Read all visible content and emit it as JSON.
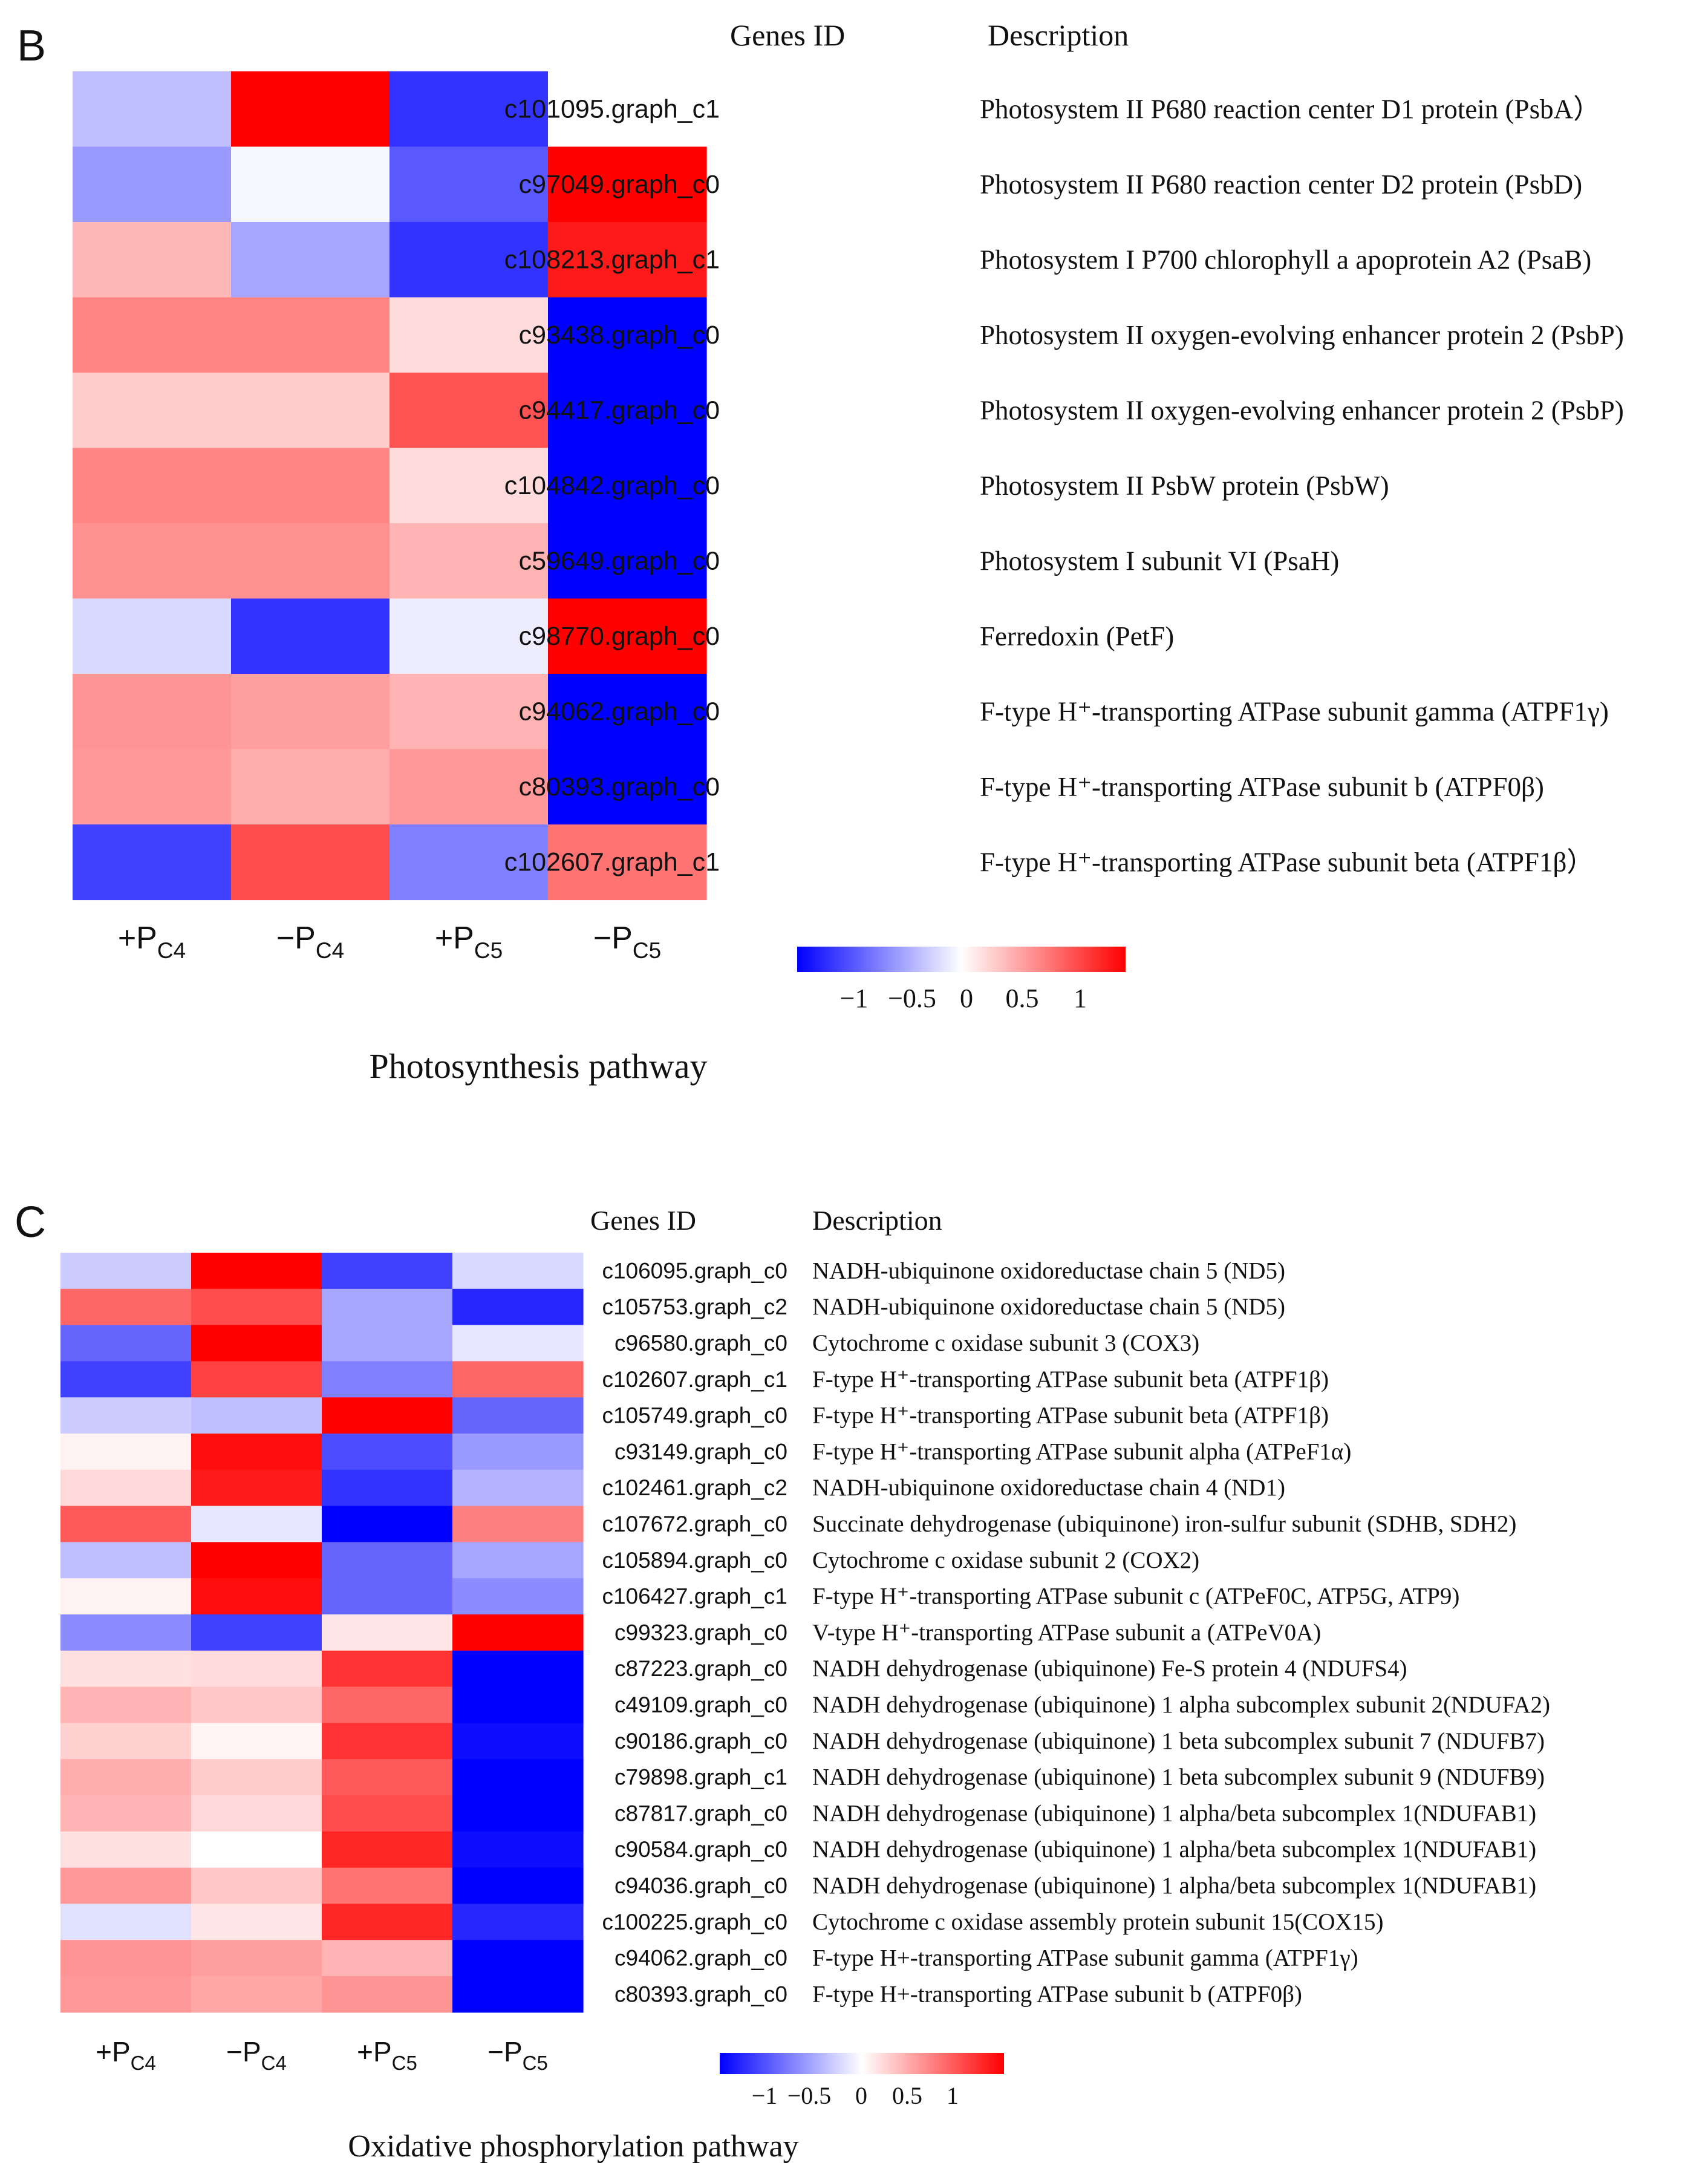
{
  "chart_data": [
    {
      "type": "heatmap",
      "panel_label": "B",
      "title": "Photosynthesis pathway",
      "gene_id_header": "Genes ID",
      "description_header": "Description",
      "columns": [
        {
          "main": "+P",
          "sub": "C4"
        },
        {
          "main": "−P",
          "sub": "C4"
        },
        {
          "main": "+P",
          "sub": "C5"
        },
        {
          "main": "−P",
          "sub": "C5"
        }
      ],
      "rows": [
        {
          "gene": "c101095.graph_c1",
          "description": "Photosystem II P680 reaction center D1 protein (PsbA）",
          "values": [
            -0.25,
            1.0,
            -0.8,
            0.0
          ]
        },
        {
          "gene": "c97049.graph_c0",
          "description": "Photosystem II P680 reaction center D2 protein (PsbD)",
          "values": [
            -0.4,
            -0.03,
            -0.65,
            1.0
          ]
        },
        {
          "gene": "c108213.graph_c1",
          "description": "Photosystem I P700 chlorophyll a apoprotein A2 (PsaB)",
          "values": [
            0.28,
            -0.35,
            -0.8,
            0.9
          ]
        },
        {
          "gene": "c93438.graph_c0",
          "description": "Photosystem II oxygen-evolving enhancer protein 2 (PsbP)",
          "values": [
            0.48,
            0.48,
            0.14,
            -1.0
          ]
        },
        {
          "gene": "c94417.graph_c0",
          "description": "Photosystem II oxygen-evolving enhancer protein 2 (PsbP)",
          "values": [
            0.2,
            0.2,
            0.68,
            -1.0
          ]
        },
        {
          "gene": "c104842.graph_c0",
          "description": "Photosystem II PsbW protein (PsbW)",
          "values": [
            0.48,
            0.48,
            0.14,
            -1.0
          ]
        },
        {
          "gene": "c59649.graph_c0",
          "description": "Photosystem I subunit VI (PsaH)",
          "values": [
            0.43,
            0.43,
            0.3,
            -1.0
          ]
        },
        {
          "gene": "c98770.graph_c0",
          "description": "Ferredoxin (PetF)",
          "values": [
            -0.15,
            -0.8,
            -0.07,
            1.0
          ]
        },
        {
          "gene": "c94062.graph_c0",
          "description": "F-type H⁺-transporting ATPase subunit gamma (ATPF1γ)",
          "values": [
            0.42,
            0.38,
            0.3,
            -1.0
          ]
        },
        {
          "gene": "c80393.graph_c0",
          "description": "F-type H⁺-transporting ATPase subunit b (ATPF0β)",
          "values": [
            0.4,
            0.32,
            0.4,
            -1.0
          ]
        },
        {
          "gene": "c102607.graph_c1",
          "description": "F-type H⁺-transporting ATPase subunit beta (ATPF1β）",
          "values": [
            -0.75,
            0.7,
            -0.5,
            0.55
          ]
        }
      ],
      "colorbar": {
        "min": -1,
        "max": 1,
        "ticks": [
          "−1",
          "−0.5",
          "0",
          "0.5",
          "1"
        ],
        "low_color": "#0000ff",
        "mid_color": "#ffffff",
        "high_color": "#ff0000"
      }
    },
    {
      "type": "heatmap",
      "panel_label": "C",
      "title": "Oxidative phosphorylation pathway",
      "gene_id_header": "Genes ID",
      "description_header": "Description",
      "columns": [
        {
          "main": "+P",
          "sub": "C4"
        },
        {
          "main": "−P",
          "sub": "C4"
        },
        {
          "main": "+P",
          "sub": "C5"
        },
        {
          "main": "−P",
          "sub": "C5"
        }
      ],
      "rows": [
        {
          "gene": "c106095.graph_c0",
          "description": "NADH-ubiquinone oxidoreductase chain 5 (ND5)",
          "values": [
            -0.2,
            1.0,
            -0.75,
            -0.15
          ]
        },
        {
          "gene": "c105753.graph_c2",
          "description": "NADH-ubiquinone oxidoreductase chain 5 (ND5)",
          "values": [
            0.6,
            0.7,
            -0.35,
            -0.85
          ]
        },
        {
          "gene": "c96580.graph_c0",
          "description": "Cytochrome c oxidase subunit 3 (COX3)",
          "values": [
            -0.6,
            1.0,
            -0.35,
            -0.1
          ]
        },
        {
          "gene": "c102607.graph_c1",
          "description": "F-type H⁺-transporting ATPase subunit beta (ATPF1β)",
          "values": [
            -0.75,
            0.75,
            -0.5,
            0.6
          ]
        },
        {
          "gene": "c105749.graph_c0",
          "description": "F-type H⁺-transporting ATPase subunit beta (ATPF1β)",
          "values": [
            -0.2,
            -0.25,
            1.0,
            -0.6
          ]
        },
        {
          "gene": "c93149.graph_c0",
          "description": "F-type H⁺-transporting ATPase subunit alpha (ATPeF1α)",
          "values": [
            0.05,
            0.95,
            -0.7,
            -0.4
          ]
        },
        {
          "gene": "c102461.graph_c2",
          "description": "NADH-ubiquinone oxidoreductase chain 4 (ND1)",
          "values": [
            0.15,
            0.9,
            -0.8,
            -0.3
          ]
        },
        {
          "gene": "c107672.graph_c0",
          "description": "Succinate dehydrogenase (ubiquinone) iron-sulfur subunit (SDHB, SDH2)",
          "values": [
            0.65,
            -0.1,
            -1.0,
            0.5
          ]
        },
        {
          "gene": "c105894.graph_c0",
          "description": "Cytochrome c oxidase subunit 2 (COX2)",
          "values": [
            -0.25,
            1.0,
            -0.6,
            -0.35
          ]
        },
        {
          "gene": "c106427.graph_c1",
          "description": "F-type H⁺-transporting ATPase subunit c (ATPeF0C, ATP5G, ATP9)",
          "values": [
            0.05,
            0.95,
            -0.6,
            -0.45
          ]
        },
        {
          "gene": "c99323.graph_c0",
          "description": "V-type H⁺-transporting ATPase subunit a (ATPeV0A)",
          "values": [
            -0.45,
            -0.75,
            0.1,
            1.0
          ]
        },
        {
          "gene": "c87223.graph_c0",
          "description": "NADH dehydrogenase (ubiquinone) Fe-S protein 4 (NDUFS4)",
          "values": [
            0.12,
            0.14,
            0.8,
            -1.0
          ]
        },
        {
          "gene": "c49109.graph_c0",
          "description": "NADH dehydrogenase (ubiquinone) 1 alpha subcomplex subunit 2(NDUFA2)",
          "values": [
            0.3,
            0.22,
            0.6,
            -1.0
          ]
        },
        {
          "gene": "c90186.graph_c0",
          "description": "NADH dehydrogenase (ubiquinone) 1 beta subcomplex subunit 7 (NDUFB7)",
          "values": [
            0.18,
            0.04,
            0.8,
            -0.95
          ]
        },
        {
          "gene": "c79898.graph_c1",
          "description": "NADH dehydrogenase (ubiquinone) 1 beta subcomplex subunit 9 (NDUFB9)",
          "values": [
            0.32,
            0.2,
            0.65,
            -1.0
          ]
        },
        {
          "gene": "c87817.graph_c0",
          "description": "NADH dehydrogenase (ubiquinone) 1 alpha/beta subcomplex 1(NDUFAB1)",
          "values": [
            0.3,
            0.15,
            0.7,
            -1.0
          ]
        },
        {
          "gene": "c90584.graph_c0",
          "description": "NADH dehydrogenase (ubiquinone) 1 alpha/beta subcomplex 1(NDUFAB1)",
          "values": [
            0.12,
            0.0,
            0.85,
            -0.95
          ]
        },
        {
          "gene": "c94036.graph_c0",
          "description": "NADH dehydrogenase (ubiquinone) 1 alpha/beta subcomplex 1(NDUFAB1)",
          "values": [
            0.4,
            0.22,
            0.55,
            -1.0
          ]
        },
        {
          "gene": "c100225.graph_c0",
          "description": "Cytochrome c oxidase assembly protein subunit 15(COX15)",
          "values": [
            -0.12,
            0.1,
            0.85,
            -0.85
          ]
        },
        {
          "gene": "c94062.graph_c0",
          "description": "F-type H+-transporting ATPase subunit gamma (ATPF1γ)",
          "values": [
            0.42,
            0.38,
            0.3,
            -1.0
          ]
        },
        {
          "gene": "c80393.graph_c0",
          "description": "F-type H+-transporting ATPase subunit b (ATPF0β)",
          "values": [
            0.4,
            0.35,
            0.42,
            -1.0
          ]
        }
      ],
      "colorbar": {
        "min": -1,
        "max": 1,
        "ticks": [
          "−1",
          "−0.5",
          "0",
          "0.5",
          "1"
        ],
        "low_color": "#0000ff",
        "mid_color": "#ffffff",
        "high_color": "#ff0000"
      }
    }
  ]
}
